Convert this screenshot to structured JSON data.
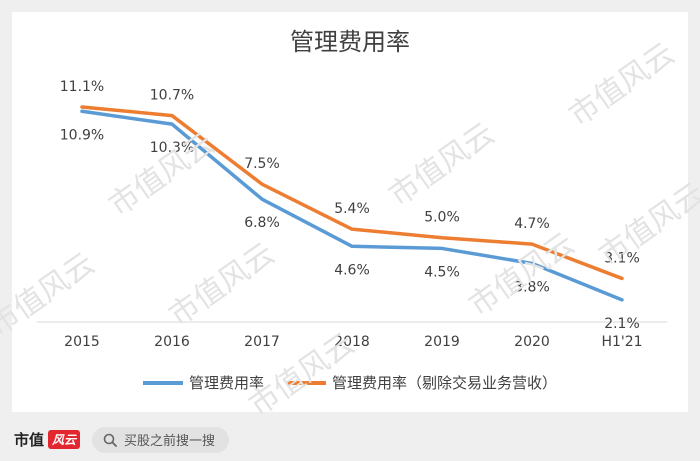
{
  "chart_data": {
    "type": "line",
    "title": "管理费用率",
    "categories": [
      "2015",
      "2016",
      "2017",
      "2018",
      "2019",
      "2020",
      "H1'21"
    ],
    "series": [
      {
        "name": "管理费用率",
        "color": "#5b9bd5",
        "values": [
          10.9,
          10.3,
          6.8,
          4.6,
          4.5,
          3.8,
          2.1
        ],
        "labels": [
          "10.9%",
          "10.3%",
          "6.8%",
          "4.6%",
          "4.5%",
          "3.8%",
          "2.1%"
        ]
      },
      {
        "name": "管理费用率（剔除交易业务营收）",
        "color": "#ed7d31",
        "values": [
          11.1,
          10.7,
          7.5,
          5.4,
          5.0,
          4.7,
          3.1
        ],
        "labels": [
          "11.1%",
          "10.7%",
          "7.5%",
          "5.4%",
          "5.0%",
          "4.7%",
          "3.1%"
        ]
      }
    ],
    "ylim": [
      0,
      12
    ],
    "grid": false,
    "legend_position": "bottom"
  },
  "watermark": "市值风云",
  "footer": {
    "brand": "市值",
    "brand_logo": "风云",
    "search_text": "买股之前搜一搜"
  }
}
